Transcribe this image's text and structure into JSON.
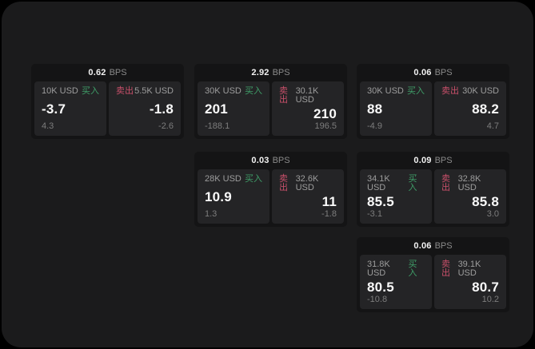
{
  "colors": {
    "buy_green": "#3f9e68",
    "sell_red": "#c9506a"
  },
  "cards": [
    {
      "bps": "0.62",
      "unit": "BPS",
      "buy": {
        "size": "10K USD",
        "label": "买入",
        "value": "-3.7",
        "sub": "4.3"
      },
      "sell": {
        "label": "卖出",
        "size": "5.5K USD",
        "value": "-1.8",
        "sub": "-2.6"
      }
    },
    {
      "bps": "2.92",
      "unit": "BPS",
      "buy": {
        "size": "30K USD",
        "label": "买入",
        "value": "201",
        "sub": "-188.1"
      },
      "sell": {
        "label": "卖出",
        "size": "30.1K USD",
        "value": "210",
        "sub": "196.5"
      }
    },
    {
      "bps": "0.06",
      "unit": "BPS",
      "buy": {
        "size": "30K USD",
        "label": "买入",
        "value": "88",
        "sub": "-4.9"
      },
      "sell": {
        "label": "卖出",
        "size": "30K USD",
        "value": "88.2",
        "sub": "4.7"
      }
    },
    {
      "bps": "0.03",
      "unit": "BPS",
      "buy": {
        "size": "28K USD",
        "label": "买入",
        "value": "10.9",
        "sub": "1.3"
      },
      "sell": {
        "label": "卖出",
        "size": "32.6K USD",
        "value": "11",
        "sub": "-1.8"
      }
    },
    {
      "bps": "0.09",
      "unit": "BPS",
      "buy": {
        "size": "34.1K USD",
        "label": "买入",
        "value": "85.5",
        "sub": "-3.1"
      },
      "sell": {
        "label": "卖出",
        "size": "32.8K USD",
        "value": "85.8",
        "sub": "3.0"
      }
    },
    {
      "bps": "0.06",
      "unit": "BPS",
      "buy": {
        "size": "31.8K USD",
        "label": "买入",
        "value": "80.5",
        "sub": "-10.8"
      },
      "sell": {
        "label": "卖出",
        "size": "39.1K USD",
        "value": "80.7",
        "sub": "10.2"
      }
    }
  ]
}
